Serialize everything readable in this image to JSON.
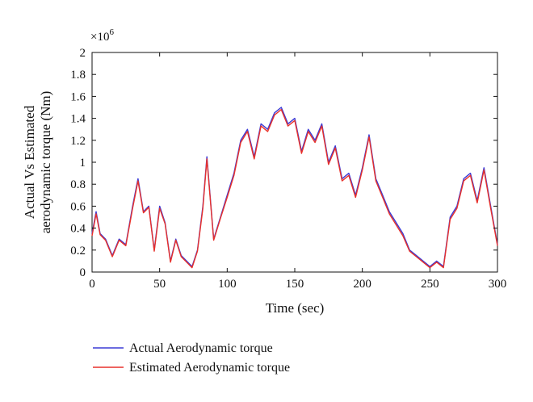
{
  "chart_data": {
    "type": "line",
    "title": "",
    "xlabel": "Time (sec)",
    "ylabel": "Actual Vs Estimated aerodynamic torque (Nm)",
    "ylabel_lines": [
      "Actual Vs Estimated",
      "aerodynamic torque (Nm)"
    ],
    "y_multiplier_label": "×10",
    "y_multiplier_exp": "6",
    "xlim": [
      0,
      300
    ],
    "ylim": [
      0,
      2
    ],
    "xticks": [
      0,
      50,
      100,
      150,
      200,
      250,
      300
    ],
    "yticks": [
      0,
      0.2,
      0.4,
      0.6,
      0.8,
      1,
      1.2,
      1.4,
      1.6,
      1.8,
      2
    ],
    "grid": false,
    "legend_position": "bottom-left, below plot",
    "series": [
      {
        "name": "Actual Aerodynamic torque",
        "color": "#3b3bd6",
        "x": [
          0,
          3,
          6,
          10,
          15,
          20,
          25,
          30,
          34,
          38,
          42,
          46,
          50,
          54,
          58,
          62,
          66,
          70,
          74,
          78,
          82,
          85,
          90,
          95,
          100,
          105,
          110,
          115,
          120,
          125,
          130,
          135,
          140,
          145,
          150,
          155,
          160,
          165,
          170,
          175,
          180,
          185,
          190,
          195,
          200,
          205,
          210,
          215,
          220,
          225,
          230,
          235,
          240,
          245,
          250,
          255,
          260,
          265,
          270,
          275,
          280,
          285,
          290,
          295,
          300
        ],
        "y": [
          0.35,
          0.55,
          0.35,
          0.3,
          0.15,
          0.3,
          0.25,
          0.6,
          0.85,
          0.55,
          0.6,
          0.2,
          0.6,
          0.45,
          0.1,
          0.3,
          0.15,
          0.1,
          0.05,
          0.2,
          0.6,
          1.05,
          0.3,
          0.5,
          0.7,
          0.9,
          1.2,
          1.3,
          1.05,
          1.35,
          1.3,
          1.45,
          1.5,
          1.35,
          1.4,
          1.1,
          1.3,
          1.2,
          1.35,
          1.0,
          1.15,
          0.85,
          0.9,
          0.7,
          0.95,
          1.25,
          0.85,
          0.7,
          0.55,
          0.45,
          0.35,
          0.2,
          0.15,
          0.1,
          0.05,
          0.1,
          0.05,
          0.5,
          0.6,
          0.85,
          0.9,
          0.65,
          0.95,
          0.6,
          0.25
        ]
      },
      {
        "name": "Estimated Aerodynamic torque",
        "color": "#e8312b",
        "x": [
          0,
          3,
          6,
          10,
          15,
          20,
          25,
          30,
          34,
          38,
          42,
          46,
          50,
          54,
          58,
          62,
          66,
          70,
          74,
          78,
          82,
          85,
          90,
          95,
          100,
          105,
          110,
          115,
          120,
          125,
          130,
          135,
          140,
          145,
          150,
          155,
          160,
          165,
          170,
          175,
          180,
          185,
          190,
          195,
          200,
          205,
          210,
          215,
          220,
          225,
          230,
          235,
          240,
          245,
          250,
          255,
          260,
          265,
          270,
          275,
          280,
          285,
          290,
          295,
          300
        ],
        "y": [
          0.33,
          0.53,
          0.34,
          0.29,
          0.14,
          0.29,
          0.24,
          0.58,
          0.83,
          0.54,
          0.59,
          0.19,
          0.58,
          0.44,
          0.09,
          0.29,
          0.14,
          0.09,
          0.04,
          0.19,
          0.58,
          1.03,
          0.29,
          0.49,
          0.68,
          0.88,
          1.18,
          1.28,
          1.03,
          1.33,
          1.28,
          1.43,
          1.48,
          1.33,
          1.38,
          1.08,
          1.28,
          1.18,
          1.33,
          0.98,
          1.13,
          0.83,
          0.88,
          0.68,
          0.93,
          1.23,
          0.83,
          0.68,
          0.53,
          0.43,
          0.33,
          0.19,
          0.14,
          0.09,
          0.04,
          0.09,
          0.04,
          0.48,
          0.58,
          0.83,
          0.88,
          0.63,
          0.93,
          0.58,
          0.24
        ]
      }
    ]
  }
}
